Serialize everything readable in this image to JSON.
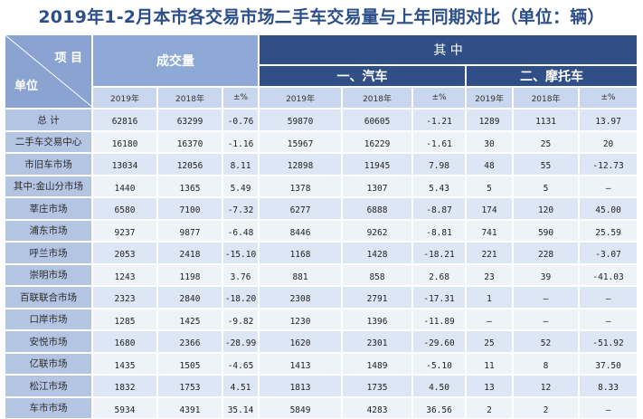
{
  "title": "2019年1-2月本市各交易市场二手车交易量与上年同期对比（单位：辆）",
  "header": {
    "corner_top": "项 目",
    "corner_bottom": "单位",
    "total_group": "成交量",
    "among": "其    中",
    "car_group": "一、汽车",
    "moto_group": "二、摩托车",
    "sub": [
      "2019年",
      "2018年",
      "±%",
      "2019年",
      "2018年",
      "±%",
      "2019年",
      "2018年",
      "±%"
    ]
  },
  "rows": [
    {
      "name": "总  计",
      "v": [
        "62816",
        "63299",
        "-0.76",
        "59870",
        "60605",
        "-1.21",
        "1289",
        "1131",
        "13.97"
      ]
    },
    {
      "name": "二手车交易中心",
      "v": [
        "16180",
        "16370",
        "-1.16",
        "15967",
        "16229",
        "-1.61",
        "30",
        "25",
        "20"
      ]
    },
    {
      "name": "市旧车市场",
      "v": [
        "13034",
        "12056",
        "8.11",
        "12898",
        "11945",
        "7.98",
        "48",
        "55",
        "-12.73"
      ]
    },
    {
      "name": "其中:金山分市场",
      "v": [
        "1440",
        "1365",
        "5.49",
        "1378",
        "1307",
        "5.43",
        "5",
        "5",
        "–"
      ]
    },
    {
      "name": "莘庄市场",
      "v": [
        "6580",
        "7100",
        "-7.32",
        "6277",
        "6888",
        "-8.87",
        "174",
        "120",
        "45.00"
      ]
    },
    {
      "name": "浦东市场",
      "v": [
        "9237",
        "9877",
        "-6.48",
        "8446",
        "9262",
        "-8.81",
        "741",
        "590",
        "25.59"
      ]
    },
    {
      "name": "呼兰市场",
      "v": [
        "2053",
        "2418",
        "-15.10",
        "1168",
        "1428",
        "-18.21",
        "221",
        "228",
        "-3.07"
      ]
    },
    {
      "name": "崇明市场",
      "v": [
        "1243",
        "1198",
        "3.76",
        "881",
        "858",
        "2.68",
        "23",
        "39",
        "-41.03"
      ]
    },
    {
      "name": "百联联合市场",
      "v": [
        "2323",
        "2840",
        "-18.20",
        "2308",
        "2791",
        "-17.31",
        "1",
        "–",
        "–"
      ]
    },
    {
      "name": "口岸市场",
      "v": [
        "1285",
        "1425",
        "-9.82",
        "1230",
        "1396",
        "-11.89",
        "–",
        "–",
        "–"
      ]
    },
    {
      "name": "安悦市场",
      "v": [
        "1680",
        "2366",
        "-28.99",
        "1620",
        "2301",
        "-29.60",
        "25",
        "52",
        "-51.92"
      ]
    },
    {
      "name": "亿联市场",
      "v": [
        "1435",
        "1505",
        "-4.65",
        "1413",
        "1489",
        "-5.10",
        "11",
        "8",
        "37.50"
      ]
    },
    {
      "name": "松江市场",
      "v": [
        "1832",
        "1753",
        "4.51",
        "1813",
        "1735",
        "4.50",
        "13",
        "12",
        "8.33"
      ]
    },
    {
      "name": "车市市场",
      "v": [
        "5934",
        "4391",
        "35.14",
        "5849",
        "4283",
        "36.56",
        "2",
        "2",
        "–"
      ]
    }
  ]
}
